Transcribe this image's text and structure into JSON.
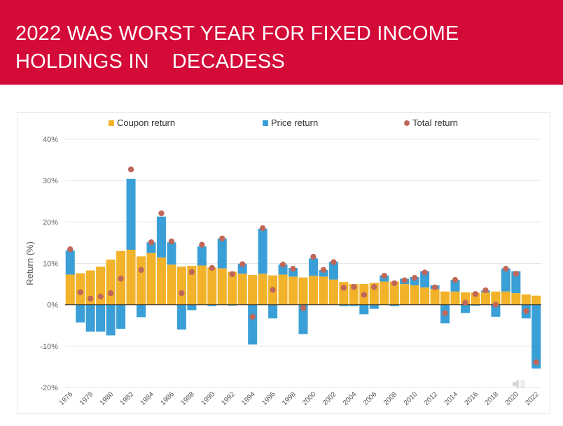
{
  "banner": {
    "title_line1": "2022 WAS WORST YEAR FOR FIXED INCOME",
    "title_line2": "HOLDINGS IN    DECADESS",
    "background": "#d40a38",
    "text_color": "#ffffff"
  },
  "speaker_icon": "speaker-icon",
  "chart_data": {
    "type": "bar",
    "stacked": true,
    "title": "",
    "xlabel": "",
    "ylabel": "Return (%)",
    "ylim": [
      -20,
      40
    ],
    "yticks": [
      -20,
      -10,
      0,
      10,
      20,
      30,
      40
    ],
    "ytick_labels": [
      "-20%",
      "-10%",
      "0%",
      "10%",
      "20%",
      "30%",
      "40%"
    ],
    "grid": true,
    "legend_position": "top",
    "categories": [
      "1976",
      "1977",
      "1978",
      "1979",
      "1980",
      "1981",
      "1982",
      "1983",
      "1984",
      "1985",
      "1986",
      "1987",
      "1988",
      "1989",
      "1990",
      "1991",
      "1992",
      "1993",
      "1994",
      "1995",
      "1996",
      "1997",
      "1998",
      "1999",
      "2000",
      "2001",
      "2002",
      "2003",
      "2004",
      "2005",
      "2006",
      "2007",
      "2008",
      "2009",
      "2010",
      "2011",
      "2012",
      "2013",
      "2014",
      "2015",
      "2016",
      "2017",
      "2018",
      "2019",
      "2020",
      "2021",
      "2022"
    ],
    "xtick_labels": [
      "1976",
      "1978",
      "1980",
      "1982",
      "1984",
      "1986",
      "1988",
      "1990",
      "1992",
      "1994",
      "1996",
      "1998",
      "2000",
      "2002",
      "2004",
      "2006",
      "2008",
      "2010",
      "2012",
      "2014",
      "2016",
      "2018",
      "2020",
      "2022"
    ],
    "series": [
      {
        "name": "Coupon return",
        "kind": "bar",
        "color": "#f2b22a",
        "values": [
          7.3,
          7.6,
          8.3,
          9.2,
          10.9,
          13.0,
          13.3,
          11.7,
          12.5,
          11.4,
          9.7,
          9.2,
          9.4,
          9.5,
          9.0,
          8.8,
          8.0,
          7.5,
          7.2,
          7.5,
          7.1,
          7.3,
          6.8,
          6.6,
          7.0,
          6.8,
          6.1,
          5.5,
          5.0,
          5.0,
          5.3,
          5.6,
          5.6,
          5.0,
          4.7,
          4.2,
          3.8,
          3.2,
          3.2,
          3.0,
          2.9,
          3.0,
          3.2,
          3.2,
          2.8,
          2.5,
          2.2
        ]
      },
      {
        "name": "Price return",
        "kind": "bar",
        "color": "#3a9fd6",
        "values": [
          5.8,
          -4.3,
          -6.5,
          -6.5,
          -7.4,
          -5.8,
          17.1,
          -3.0,
          2.6,
          9.9,
          5.4,
          -6.0,
          -1.3,
          4.6,
          -0.3,
          7.2,
          -0.2,
          2.4,
          -9.6,
          10.9,
          -3.3,
          2.4,
          2.1,
          -7.1,
          4.2,
          1.6,
          4.3,
          -0.3,
          -0.3,
          -2.3,
          -1.0,
          1.5,
          -0.3,
          1.3,
          2.0,
          3.9,
          0.9,
          -4.5,
          2.8,
          -2.0,
          -0.2,
          0.4,
          -2.9,
          5.6,
          5.3,
          -3.3,
          -15.4
        ]
      },
      {
        "name": "Total return",
        "kind": "dot",
        "color": "#c0675a",
        "values": [
          13.4,
          3.0,
          1.5,
          2.0,
          2.8,
          6.3,
          32.7,
          8.4,
          15.1,
          22.1,
          15.3,
          2.8,
          7.9,
          14.5,
          8.9,
          16.0,
          7.4,
          9.8,
          -2.9,
          18.5,
          3.6,
          9.7,
          8.7,
          -0.8,
          11.6,
          8.4,
          10.3,
          4.1,
          4.3,
          2.4,
          4.3,
          7.0,
          5.2,
          5.9,
          6.5,
          7.8,
          4.2,
          -2.0,
          6.0,
          0.5,
          2.6,
          3.5,
          0.0,
          8.7,
          7.5,
          -1.5,
          -13.9
        ]
      }
    ]
  }
}
